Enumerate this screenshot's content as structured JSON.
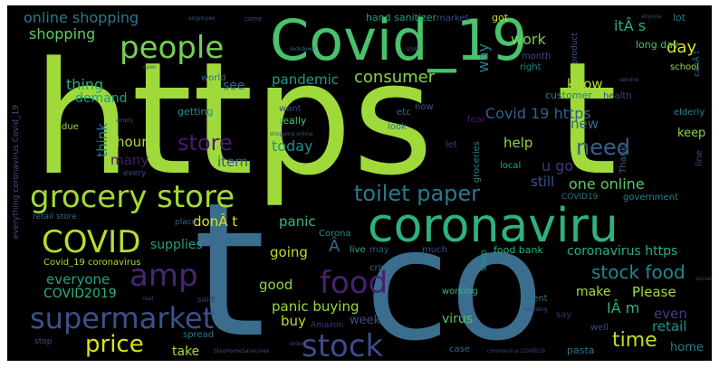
{
  "words": [
    {
      "text": "https",
      "color": "#9fda3a"
    },
    {
      "text": "t",
      "color": "#9fda3a"
    },
    {
      "text": "t",
      "color": "#3b6d8e"
    },
    {
      "text": "co",
      "color": "#3b6d8e"
    },
    {
      "text": "Covid_19",
      "color": "#4ac16d"
    },
    {
      "text": "coronaviru",
      "color": "#2db27d"
    },
    {
      "text": "grocery store",
      "color": "#a2da37"
    },
    {
      "text": "people",
      "color": "#73d056"
    },
    {
      "text": "COVID",
      "color": "#b5de2b"
    },
    {
      "text": "amp",
      "color": "#482475"
    },
    {
      "text": "food",
      "color": "#482071"
    },
    {
      "text": "supermarket",
      "color": "#3b518b"
    },
    {
      "text": "stock",
      "color": "#3e4a89"
    },
    {
      "text": "price",
      "color": "#dae319"
    },
    {
      "text": "need",
      "color": "#33638d"
    },
    {
      "text": "store",
      "color": "#481c6e"
    },
    {
      "text": "toilet paper",
      "color": "#2a788e"
    },
    {
      "text": "stock food",
      "color": "#24868e"
    },
    {
      "text": "time",
      "color": "#bddf26"
    },
    {
      "text": "online shopping",
      "color": "#2a778e"
    },
    {
      "text": "shopping",
      "color": "#63cb5f"
    },
    {
      "text": "thing",
      "color": "#26ad81"
    },
    {
      "text": "demand",
      "color": "#1e9c89"
    },
    {
      "text": "see",
      "color": "#31678e"
    },
    {
      "text": "pandemic",
      "color": "#1f9a8a"
    },
    {
      "text": "consumer",
      "color": "#84d44b"
    },
    {
      "text": "work",
      "color": "#7ad151"
    },
    {
      "text": "way",
      "color": "#25858e"
    },
    {
      "text": "itÂ s",
      "color": "#29af7f"
    },
    {
      "text": "day",
      "color": "#dde318"
    },
    {
      "text": "know",
      "color": "#b5de2b"
    },
    {
      "text": "new",
      "color": "#33638d"
    },
    {
      "text": "Covid 19 https",
      "color": "#34618d"
    },
    {
      "text": "hour",
      "color": "#b0dd2f"
    },
    {
      "text": "today",
      "color": "#21918c"
    },
    {
      "text": "think",
      "color": "#2a788e"
    },
    {
      "text": "many",
      "color": "#481769"
    },
    {
      "text": "item",
      "color": "#39568c"
    },
    {
      "text": "help",
      "color": "#8bd646"
    },
    {
      "text": "u go",
      "color": "#46337f"
    },
    {
      "text": "one online",
      "color": "#5ac864"
    },
    {
      "text": "still",
      "color": "#3a548c"
    },
    {
      "text": "keep",
      "color": "#8bd646"
    },
    {
      "text": "donÂ t",
      "color": "#dde318"
    },
    {
      "text": "panic",
      "color": "#35b779"
    },
    {
      "text": "supplies",
      "color": "#1f9e89"
    },
    {
      "text": "going",
      "color": "#b8de29"
    },
    {
      "text": "everyone",
      "color": "#1fa188"
    },
    {
      "text": "Â",
      "color": "#31688e"
    },
    {
      "text": "coronavirus https",
      "color": "#29af7f"
    },
    {
      "text": "COVID2019",
      "color": "#2eb37c"
    },
    {
      "text": "good",
      "color": "#8bd646"
    },
    {
      "text": "panic buying",
      "color": "#95d840"
    },
    {
      "text": "buy",
      "color": "#b8de29"
    },
    {
      "text": "make",
      "color": "#a8db34"
    },
    {
      "text": "Please",
      "color": "#a0da39"
    },
    {
      "text": "IÂ m",
      "color": "#2fb47c"
    },
    {
      "text": "even",
      "color": "#433e85"
    },
    {
      "text": "retail",
      "color": "#1f948c"
    },
    {
      "text": "virus",
      "color": "#54c568"
    },
    {
      "text": "week",
      "color": "#3e4a89"
    },
    {
      "text": "take",
      "color": "#a8db34"
    },
    {
      "text": "home",
      "color": "#287d8e"
    },
    {
      "text": "hand sanitizer",
      "color": "#1fa088"
    },
    {
      "text": "market",
      "color": "#404688"
    },
    {
      "text": "got",
      "color": "#c8e020"
    },
    {
      "text": "lot",
      "color": "#2c718e"
    },
    {
      "text": "long day",
      "color": "#52c569"
    },
    {
      "text": "month",
      "color": "#3e4989"
    },
    {
      "text": "right",
      "color": "#24868e"
    },
    {
      "text": "school",
      "color": "#a8db34"
    },
    {
      "text": "world",
      "color": "#31688e"
    },
    {
      "text": "customer",
      "color": "#2a788e"
    },
    {
      "text": "health",
      "color": "#414287"
    },
    {
      "text": "elderly",
      "color": "#23898e"
    },
    {
      "text": "getting",
      "color": "#21918c"
    },
    {
      "text": "want",
      "color": "#3f4788"
    },
    {
      "text": "really",
      "color": "#4ec36b"
    },
    {
      "text": "etc",
      "color": "#2c728e"
    },
    {
      "text": "now",
      "color": "#3d4e8a"
    },
    {
      "text": "fear",
      "color": "#48186a"
    },
    {
      "text": "look",
      "color": "#2d708e"
    },
    {
      "text": "due",
      "color": "#95d840"
    },
    {
      "text": "groceries",
      "color": "#26828e"
    },
    {
      "text": "let",
      "color": "#424086"
    },
    {
      "text": "local",
      "color": "#22a785"
    },
    {
      "text": "Thank",
      "color": "#35608d"
    },
    {
      "text": "line",
      "color": "#3f4889"
    },
    {
      "text": "government",
      "color": "#25838e"
    },
    {
      "text": "COVID19",
      "color": "#2c738e"
    },
    {
      "text": "retail store",
      "color": "#33638d"
    },
    {
      "text": "place",
      "color": "#38588c"
    },
    {
      "text": "Corona",
      "color": "#24868e"
    },
    {
      "text": "live",
      "color": "#27ad81"
    },
    {
      "text": "may",
      "color": "#3b528b"
    },
    {
      "text": "crisis",
      "color": "#2e6f8e"
    },
    {
      "text": "much",
      "color": "#3e4989"
    },
    {
      "text": "food bank",
      "color": "#2db27d"
    },
    {
      "text": "shop",
      "color": "#1f998a"
    },
    {
      "text": "Covid_19 coronavirus",
      "color": "#a8db34"
    },
    {
      "text": "said",
      "color": "#46307e"
    },
    {
      "text": "Amazon",
      "color": "#472c7a"
    },
    {
      "text": "working",
      "color": "#35b779"
    },
    {
      "text": "went",
      "color": "#2e6e8e"
    },
    {
      "text": "say",
      "color": "#482878"
    },
    {
      "text": "well",
      "color": "#3f4788"
    },
    {
      "text": "spread",
      "color": "#2a788e"
    },
    {
      "text": "stop",
      "color": "#3e4a89"
    },
    {
      "text": "case",
      "color": "#31688e"
    },
    {
      "text": "pasta",
      "color": "#2c718e"
    },
    {
      "text": "everything coronavirus Covid_19",
      "color": "#3b528b"
    },
    {
      "text": "come",
      "color": "#3e4a89"
    },
    {
      "text": "coronavirus COVID19",
      "color": "#404588"
    },
    {
      "text": "product",
      "color": "#3b528b"
    },
    {
      "text": "shopping online",
      "color": "#3b528b"
    },
    {
      "text": "every",
      "color": "#3e4a89"
    },
    {
      "text": "canÂ t",
      "color": "#2c728e"
    },
    {
      "text": "lockdown",
      "color": "#2d708e"
    },
    {
      "text": "employee",
      "color": "#3b528b"
    },
    {
      "text": "empty",
      "color": "#3b528b"
    },
    {
      "text": "open",
      "color": "#3b528b"
    },
    {
      "text": "service",
      "color": "#3b528b"
    },
    {
      "text": "use",
      "color": "#3e4a89"
    },
    {
      "text": "order",
      "color": "#3e4a89"
    },
    {
      "text": "hoarding",
      "color": "#3e4a89"
    },
    {
      "text": "StayHomeSaveLives",
      "color": "#3e4a89"
    },
    {
      "text": "real",
      "color": "#3e4a89"
    },
    {
      "text": "anyone",
      "color": "#3e4a89"
    },
    {
      "text": "social",
      "color": "#3e4a89"
    }
  ]
}
